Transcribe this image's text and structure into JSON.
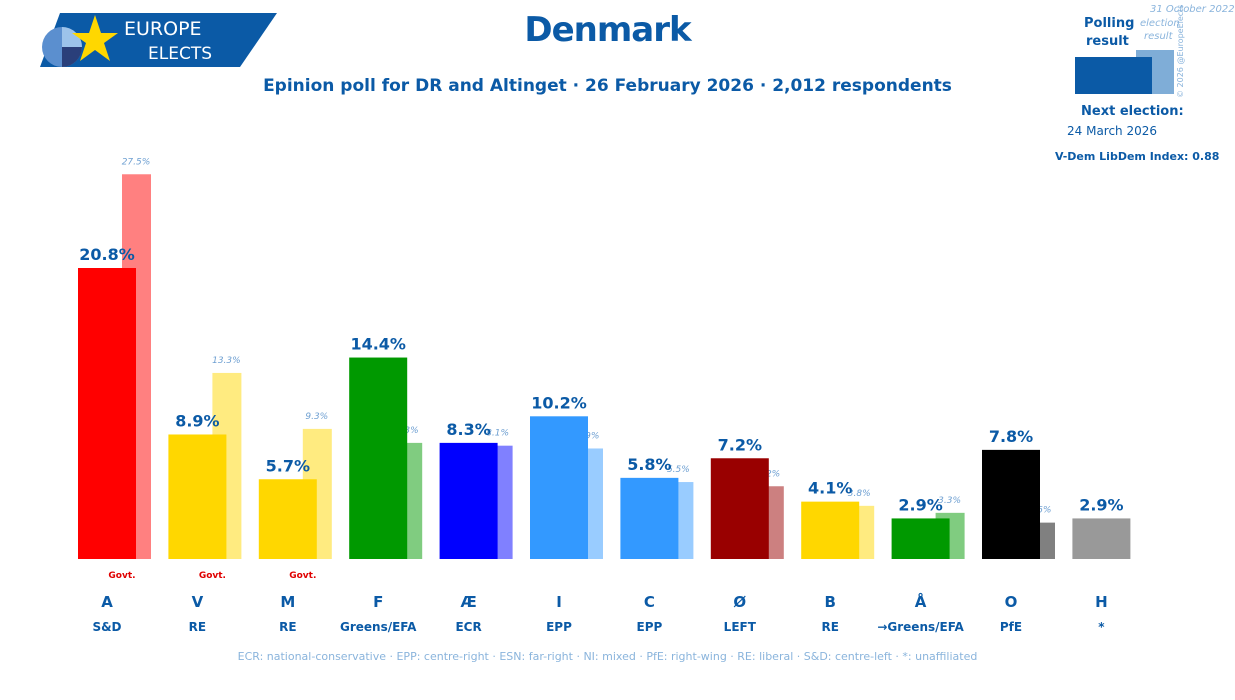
{
  "header": {
    "title": "Denmark",
    "subtitle": "Epinion poll for DR and Altinget · 26 February 2026 · 2,012 respondents",
    "logo_text_1": "EUROPE",
    "logo_text_2": "ELECTS"
  },
  "legend": {
    "polling_label_1": "Polling",
    "polling_label_2": "result",
    "election_label_1": "31 October 2022",
    "election_label_2": "election",
    "election_label_3": "result",
    "copyright": "© 2026 @EuropeElects",
    "next_election_label": "Next election:",
    "next_election_date": "24 March 2026",
    "vdem": "V-Dem LibDem Index: 0.88"
  },
  "footer": "ECR: national-conservative · EPP: centre-right · ESN: far-right · NI: mixed · PfE: right-wing · RE: liberal · S&D: centre-left · *: unaffiliated",
  "colors": {
    "text": "#0b5aa6",
    "govt": "#e00000"
  },
  "chart_data": {
    "type": "bar",
    "categories": [
      "A",
      "V",
      "M",
      "F",
      "Æ",
      "I",
      "C",
      "Ø",
      "B",
      "Å",
      "O",
      "H"
    ],
    "groups": [
      "S&D",
      "RE",
      "RE",
      "Greens/EFA",
      "ECR",
      "EPP",
      "EPP",
      "LEFT",
      "RE",
      "→Greens/EFA",
      "PfE",
      "*"
    ],
    "govt": [
      true,
      true,
      true,
      false,
      false,
      false,
      false,
      false,
      false,
      false,
      false,
      false
    ],
    "govt_label": "Govt.",
    "series": [
      {
        "name": "Polling result",
        "values": [
          20.8,
          8.9,
          5.7,
          14.4,
          8.3,
          10.2,
          5.8,
          7.2,
          4.1,
          2.9,
          7.8,
          2.9
        ]
      },
      {
        "name": "31 October 2022 election result",
        "values": [
          27.5,
          13.3,
          9.3,
          8.3,
          8.1,
          7.9,
          5.5,
          5.2,
          3.8,
          3.3,
          2.6,
          null
        ]
      }
    ],
    "colors": [
      "#ff0000",
      "#ffd700",
      "#ffd700",
      "#009900",
      "#0000ff",
      "#3399ff",
      "#3399ff",
      "#990000",
      "#ffd700",
      "#009900",
      "#000000",
      "#999999"
    ],
    "prev_colors": [
      "#ff8080",
      "#ffeb80",
      "#ffeb80",
      "#80cc80",
      "#8080ff",
      "#99ccff",
      "#99ccff",
      "#cc8080",
      "#ffeb80",
      "#80cc80",
      "#808080",
      null
    ],
    "ylim": [
      0,
      27.5
    ]
  }
}
